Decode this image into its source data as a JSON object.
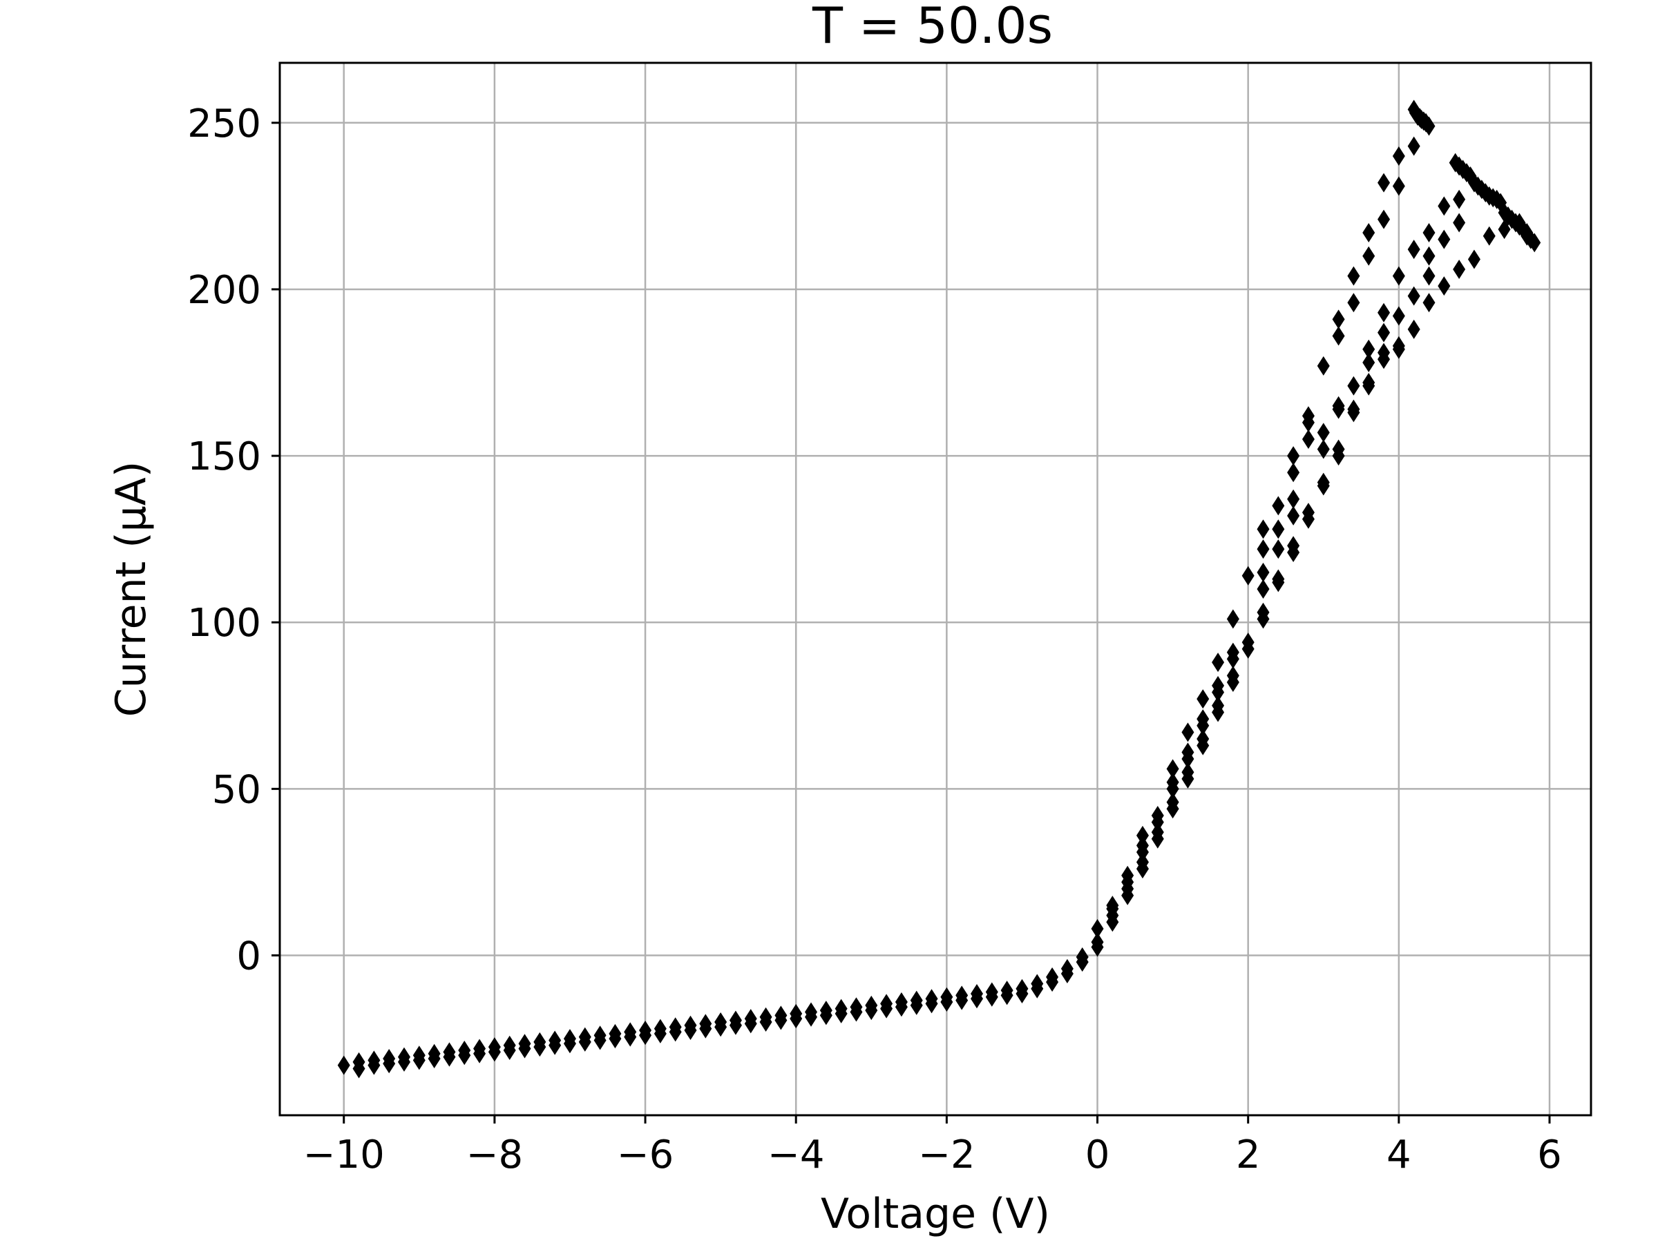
{
  "chart_data": {
    "type": "scatter",
    "title": "T = 50.0s",
    "xlabel": "Voltage (V)",
    "ylabel": "Current (μA)",
    "xlim": [
      -10.85,
      6.55
    ],
    "ylim": [
      -48,
      268
    ],
    "xticks": [
      -10,
      -8,
      -6,
      -4,
      -2,
      0,
      2,
      4,
      6
    ],
    "xtick_labels": [
      "−10",
      "−8",
      "−6",
      "−4",
      "−2",
      "0",
      "2",
      "4",
      "6"
    ],
    "yticks": [
      0,
      50,
      100,
      150,
      200,
      250
    ],
    "ytick_labels": [
      "0",
      "50",
      "100",
      "150",
      "200",
      "250"
    ],
    "grid": true,
    "legend": "none",
    "marker": "thin-diamond",
    "series": [
      {
        "color": "#000000",
        "points": [
          [
            -10.0,
            -33
          ],
          [
            -9.8,
            -32
          ],
          [
            -9.6,
            -31.5
          ],
          [
            -9.4,
            -31
          ],
          [
            -9.2,
            -30.5
          ],
          [
            -9.0,
            -30
          ],
          [
            -8.8,
            -29.5
          ],
          [
            -8.6,
            -29
          ],
          [
            -8.4,
            -28.5
          ],
          [
            -8.2,
            -28
          ],
          [
            -8.0,
            -27.5
          ],
          [
            -7.8,
            -27
          ],
          [
            -7.6,
            -26.5
          ],
          [
            -7.4,
            -26
          ],
          [
            -7.2,
            -25.5
          ],
          [
            -7.0,
            -25
          ],
          [
            -6.8,
            -24.5
          ],
          [
            -6.6,
            -24
          ],
          [
            -6.4,
            -23.5
          ],
          [
            -6.2,
            -23
          ],
          [
            -6.0,
            -22.5
          ],
          [
            -5.8,
            -22
          ],
          [
            -5.6,
            -21.5
          ],
          [
            -5.4,
            -21
          ],
          [
            -5.2,
            -20.5
          ],
          [
            -5.0,
            -20
          ],
          [
            -4.8,
            -19.5
          ],
          [
            -4.6,
            -19
          ],
          [
            -4.4,
            -18.5
          ],
          [
            -4.2,
            -18
          ],
          [
            -4.0,
            -17.5
          ],
          [
            -3.8,
            -17
          ],
          [
            -3.6,
            -16.5
          ],
          [
            -3.4,
            -16
          ],
          [
            -3.2,
            -15.5
          ],
          [
            -3.0,
            -15
          ],
          [
            -2.8,
            -14.5
          ],
          [
            -2.6,
            -14
          ],
          [
            -2.4,
            -13.5
          ],
          [
            -2.2,
            -13
          ],
          [
            -2.0,
            -12.5
          ],
          [
            -1.8,
            -12
          ],
          [
            -1.6,
            -11.5
          ],
          [
            -1.4,
            -11
          ],
          [
            -1.2,
            -10.5
          ],
          [
            -1.0,
            -10
          ],
          [
            -0.8,
            -8.5
          ],
          [
            -0.6,
            -6.5
          ],
          [
            -0.4,
            -4
          ],
          [
            -0.2,
            -0.5
          ],
          [
            0.0,
            4
          ],
          [
            0.2,
            12
          ],
          [
            0.4,
            20
          ],
          [
            0.6,
            28
          ],
          [
            0.8,
            37
          ],
          [
            1.0,
            46
          ],
          [
            1.2,
            55
          ],
          [
            1.4,
            65
          ],
          [
            1.6,
            75
          ],
          [
            1.8,
            84
          ],
          [
            2.0,
            94
          ],
          [
            2.2,
            103
          ],
          [
            2.4,
            113
          ],
          [
            2.6,
            123
          ],
          [
            2.8,
            133
          ],
          [
            3.0,
            142
          ],
          [
            3.2,
            152
          ],
          [
            3.4,
            164
          ],
          [
            3.6,
            172
          ],
          [
            3.8,
            181
          ],
          [
            4.0,
            183
          ],
          [
            4.2,
            188
          ],
          [
            4.4,
            196
          ],
          [
            4.6,
            201
          ],
          [
            4.8,
            206
          ],
          [
            5.0,
            209
          ],
          [
            5.2,
            216
          ],
          [
            5.4,
            218
          ],
          [
            5.6,
            220
          ],
          [
            5.7,
            216
          ],
          [
            5.8,
            214
          ],
          [
            -9.8,
            -34
          ],
          [
            -9.6,
            -33
          ],
          [
            -9.4,
            -32.5
          ],
          [
            -9.2,
            -32
          ],
          [
            -9.0,
            -31.5
          ],
          [
            -8.8,
            -31
          ],
          [
            -8.6,
            -30.5
          ],
          [
            -8.4,
            -30
          ],
          [
            -8.2,
            -29.5
          ],
          [
            -8.0,
            -29
          ],
          [
            -7.8,
            -28.5
          ],
          [
            -7.6,
            -28
          ],
          [
            -7.4,
            -27.5
          ],
          [
            -7.2,
            -27
          ],
          [
            -7.0,
            -26.5
          ],
          [
            -6.8,
            -26
          ],
          [
            -6.6,
            -25.5
          ],
          [
            -6.4,
            -25
          ],
          [
            -6.2,
            -24.5
          ],
          [
            -6.0,
            -24
          ],
          [
            -5.8,
            -23.5
          ],
          [
            -5.6,
            -23
          ],
          [
            -5.4,
            -22.5
          ],
          [
            -5.2,
            -22
          ],
          [
            -5.0,
            -21.5
          ],
          [
            -4.8,
            -21
          ],
          [
            -4.6,
            -20.5
          ],
          [
            -4.4,
            -20
          ],
          [
            -4.2,
            -19.5
          ],
          [
            -4.0,
            -19
          ],
          [
            -3.8,
            -18.5
          ],
          [
            -3.6,
            -18
          ],
          [
            -3.4,
            -17.5
          ],
          [
            -3.2,
            -17
          ],
          [
            -3.0,
            -16.5
          ],
          [
            -2.8,
            -16
          ],
          [
            -2.6,
            -15.5
          ],
          [
            -2.4,
            -15
          ],
          [
            -2.2,
            -14.5
          ],
          [
            -2.0,
            -14
          ],
          [
            -1.8,
            -13.5
          ],
          [
            -1.6,
            -13
          ],
          [
            -1.4,
            -12.5
          ],
          [
            -1.2,
            -12
          ],
          [
            -1.0,
            -11.5
          ],
          [
            -0.8,
            -10
          ],
          [
            -0.6,
            -8
          ],
          [
            -0.4,
            -5.5
          ],
          [
            -0.2,
            -2
          ],
          [
            0.0,
            2.5
          ],
          [
            0.2,
            10
          ],
          [
            0.4,
            18
          ],
          [
            0.6,
            26
          ],
          [
            0.8,
            35
          ],
          [
            1.0,
            44
          ],
          [
            1.2,
            53
          ],
          [
            1.4,
            63
          ],
          [
            1.6,
            73
          ],
          [
            1.8,
            82
          ],
          [
            2.0,
            92
          ],
          [
            0.0,
            8
          ],
          [
            0.2,
            15
          ],
          [
            0.4,
            24
          ],
          [
            0.6,
            33
          ],
          [
            0.8,
            42
          ],
          [
            1.0,
            52
          ],
          [
            1.2,
            61
          ],
          [
            1.4,
            71
          ],
          [
            1.6,
            81
          ],
          [
            1.8,
            91
          ],
          [
            0.2,
            14
          ],
          [
            0.4,
            22
          ],
          [
            0.6,
            31
          ],
          [
            0.8,
            40
          ],
          [
            1.0,
            50
          ],
          [
            1.2,
            59
          ],
          [
            1.4,
            69
          ],
          [
            1.6,
            79
          ],
          [
            1.8,
            89
          ],
          [
            0.6,
            36
          ],
          [
            1.0,
            56
          ],
          [
            1.2,
            67
          ],
          [
            1.4,
            77
          ],
          [
            1.6,
            88
          ],
          [
            1.8,
            101
          ],
          [
            2.2,
            101
          ],
          [
            2.2,
            110
          ],
          [
            2.2,
            115
          ],
          [
            2.4,
            112
          ],
          [
            2.4,
            122
          ],
          [
            2.6,
            121
          ],
          [
            2.6,
            132
          ],
          [
            2.8,
            131
          ],
          [
            3.0,
            141
          ],
          [
            3.2,
            150
          ],
          [
            3.4,
            163
          ],
          [
            3.6,
            171
          ],
          [
            3.8,
            179
          ],
          [
            4.0,
            182
          ],
          [
            2.0,
            114
          ],
          [
            2.2,
            122
          ],
          [
            2.2,
            128
          ],
          [
            2.4,
            128
          ],
          [
            2.4,
            135
          ],
          [
            2.6,
            137
          ],
          [
            2.6,
            145
          ],
          [
            2.6,
            150
          ],
          [
            2.8,
            155
          ],
          [
            2.8,
            160
          ],
          [
            2.8,
            162
          ],
          [
            3.0,
            157
          ],
          [
            3.0,
            152
          ],
          [
            3.0,
            177
          ],
          [
            3.2,
            165
          ],
          [
            3.2,
            164
          ],
          [
            3.2,
            186
          ],
          [
            3.2,
            191
          ],
          [
            3.4,
            171
          ],
          [
            3.4,
            196
          ],
          [
            3.4,
            204
          ],
          [
            3.6,
            182
          ],
          [
            3.6,
            178
          ],
          [
            3.6,
            210
          ],
          [
            3.6,
            217
          ],
          [
            3.8,
            187
          ],
          [
            3.8,
            193
          ],
          [
            3.8,
            221
          ],
          [
            3.8,
            232
          ],
          [
            4.0,
            192
          ],
          [
            4.0,
            204
          ],
          [
            4.0,
            231
          ],
          [
            4.0,
            240
          ],
          [
            4.2,
            198
          ],
          [
            4.2,
            212
          ],
          [
            4.2,
            243
          ],
          [
            4.4,
            204
          ],
          [
            4.4,
            210
          ],
          [
            4.4,
            217
          ],
          [
            4.6,
            215
          ],
          [
            4.6,
            225
          ],
          [
            4.8,
            220
          ],
          [
            4.8,
            227
          ],
          [
            4.2,
            254
          ],
          [
            4.22,
            253
          ],
          [
            4.25,
            252
          ],
          [
            4.28,
            251.5
          ],
          [
            4.3,
            251
          ],
          [
            4.33,
            250.5
          ],
          [
            4.36,
            250
          ],
          [
            4.4,
            249
          ],
          [
            4.75,
            238
          ],
          [
            4.8,
            237
          ],
          [
            4.85,
            236
          ],
          [
            4.9,
            235
          ],
          [
            4.95,
            234
          ],
          [
            5.0,
            232
          ],
          [
            5.05,
            231
          ],
          [
            5.1,
            230
          ],
          [
            5.15,
            229
          ],
          [
            5.2,
            228
          ],
          [
            5.25,
            227.5
          ],
          [
            5.3,
            227
          ],
          [
            5.35,
            226
          ],
          [
            5.4,
            223
          ],
          [
            5.45,
            222
          ],
          [
            5.5,
            221
          ],
          [
            5.55,
            220
          ],
          [
            5.6,
            219
          ],
          [
            5.65,
            218
          ],
          [
            5.7,
            217
          ],
          [
            5.75,
            215
          ]
        ]
      }
    ]
  }
}
